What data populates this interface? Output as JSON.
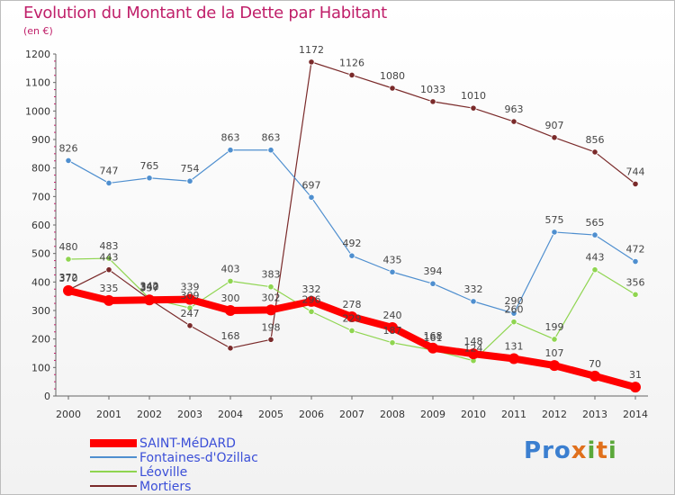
{
  "header": {
    "title": "Evolution du Montant de la Dette par Habitant",
    "unit": "(en €)"
  },
  "brand": "Proxiti",
  "chart_data": {
    "type": "line",
    "title": "Evolution du Montant de la Dette par Habitant",
    "ylabel": "(en €)",
    "xlabel": "",
    "ylim": [
      0,
      1200
    ],
    "yticks": [
      0,
      100,
      200,
      300,
      400,
      500,
      600,
      700,
      800,
      900,
      1000,
      1100,
      1200
    ],
    "grid": false,
    "legend_position": "bottom-left",
    "categories": [
      "2000",
      "2001",
      "2002",
      "2003",
      "2004",
      "2005",
      "2006",
      "2007",
      "2008",
      "2009",
      "2010",
      "2011",
      "2012",
      "2013",
      "2014"
    ],
    "series": [
      {
        "name": "SAINT-MéDARD",
        "color": "#ff0000",
        "values": [
          370,
          335,
          337,
          339,
          300,
          302,
          332,
          278,
          240,
          168,
          148,
          131,
          107,
          70,
          31
        ],
        "labels": [
          "370",
          "335",
          "337",
          "339",
          "300",
          "302",
          "332",
          "278",
          "240",
          "168",
          "148",
          "131",
          "107",
          "70",
          "31"
        ]
      },
      {
        "name": "Fontaines-d'Ozillac",
        "color": "#4f8fcf",
        "values": [
          826,
          747,
          765,
          754,
          863,
          863,
          697,
          492,
          435,
          394,
          332,
          290,
          575,
          565,
          472
        ],
        "labels": [
          "826",
          "747",
          "765",
          "754",
          "863",
          "863",
          "697",
          "492",
          "435",
          "394",
          "332",
          "290",
          "575",
          "565",
          "472"
        ]
      },
      {
        "name": "Léoville",
        "color": "#8fd550",
        "values": [
          480,
          483,
          342,
          309,
          403,
          383,
          296,
          229,
          187,
          161,
          124,
          260,
          199,
          443,
          356
        ],
        "labels": [
          "480",
          "483",
          "342",
          "309",
          "403",
          "383",
          "296",
          "229",
          "187",
          "161",
          "124",
          "260",
          "199",
          "443",
          "356"
        ]
      },
      {
        "name": "Mortiers",
        "color": "#7a2a2a",
        "values": [
          372,
          443,
          340,
          247,
          168,
          198,
          1172,
          1126,
          1080,
          1033,
          1010,
          963,
          907,
          856,
          744
        ],
        "labels": [
          "372",
          "443",
          "340",
          "247",
          "168",
          "198",
          "1172",
          "1126",
          "1080",
          "1033",
          "1010",
          "963",
          "907",
          "856",
          "744"
        ]
      }
    ]
  }
}
